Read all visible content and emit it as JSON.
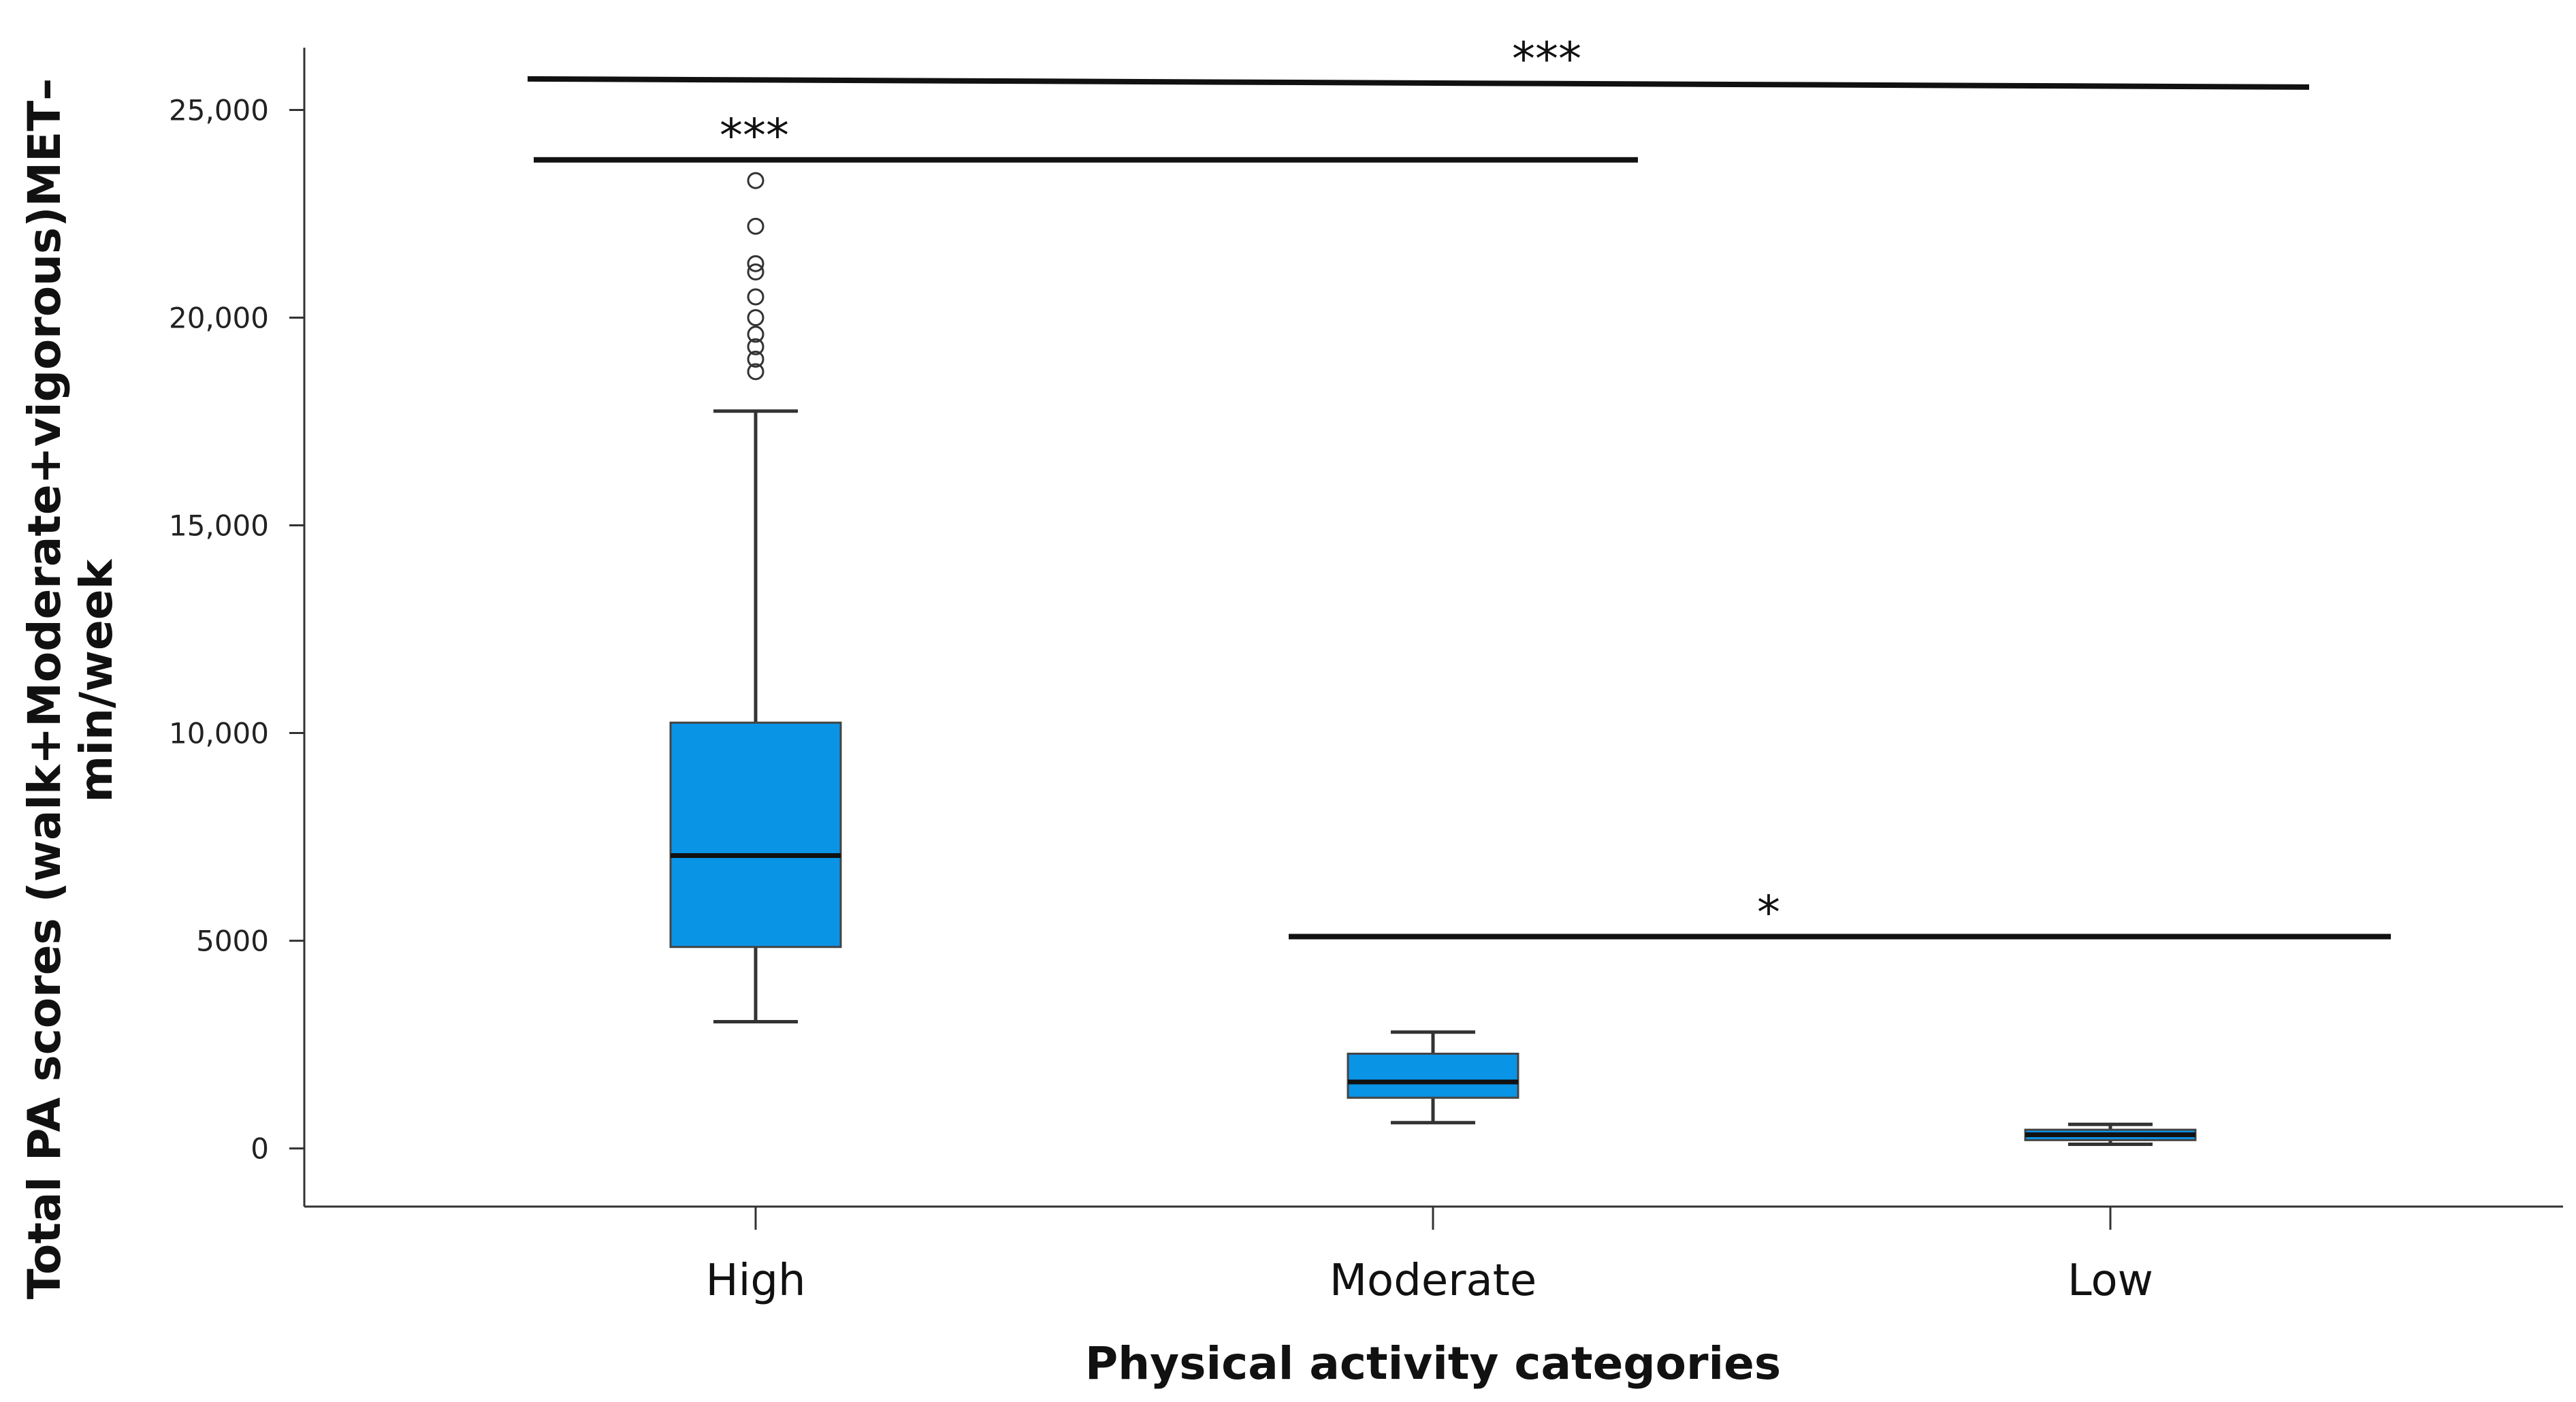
{
  "chart_data": {
    "type": "boxplot",
    "title": "",
    "xlabel": "Physical activity categories",
    "ylabel_lines": [
      "Total PA scores (walk+Moderate+vigorous)MET–",
      "min/week"
    ],
    "ylim": [
      -1400,
      26500
    ],
    "yticks": [
      0,
      5000,
      10000,
      15000,
      20000,
      25000
    ],
    "ytick_labels": [
      "0",
      "5000",
      "10,000",
      "15,000",
      "20,000",
      "25,000"
    ],
    "grid": false,
    "box_color": "#0a94e6",
    "categories": [
      "High",
      "Moderate",
      "Low"
    ],
    "boxes": [
      {
        "category": "High",
        "min": 3050,
        "q1": 4850,
        "median": 7050,
        "q3": 10250,
        "max": 17750,
        "outliers": [
          18700,
          19000,
          19300,
          19600,
          20000,
          20500,
          21100,
          21300,
          22200,
          23300
        ]
      },
      {
        "category": "Moderate",
        "min": 620,
        "q1": 1220,
        "median": 1600,
        "q3": 2280,
        "max": 2800,
        "outliers": []
      },
      {
        "category": "Low",
        "min": 100,
        "q1": 200,
        "median": 330,
        "q3": 450,
        "max": 580,
        "outliers": []
      }
    ],
    "significance": [
      {
        "label": "***",
        "from_category": "High",
        "to_category": "Low",
        "level": 25650
      },
      {
        "label": "***",
        "from_category": "High",
        "to_category": "Moderate",
        "level": 23800
      },
      {
        "label": "*",
        "from_category": "Moderate",
        "to_category": "Low",
        "level": 5100
      }
    ]
  }
}
